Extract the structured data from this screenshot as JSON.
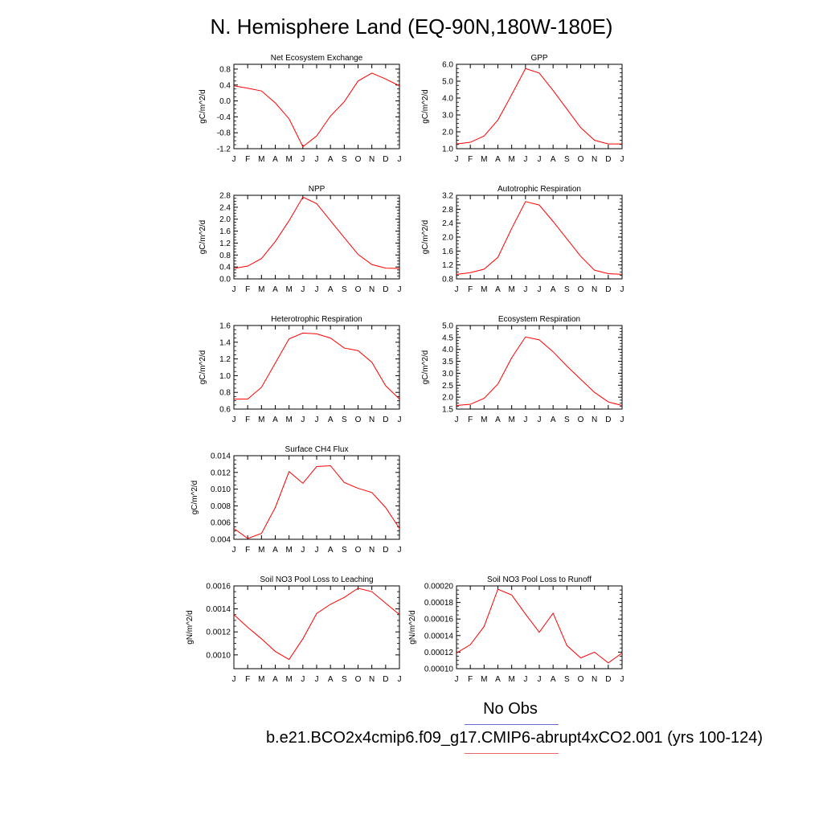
{
  "title": "N. Hemisphere Land (EQ-90N,180W-180E)",
  "legend": {
    "obs_label": "No Obs",
    "obs_color": "#0000ff",
    "case_label": "b.e21.BCO2x4cmip6.f09_g17.CMIP6-abrupt4xCO2.001 (yrs 100-124)",
    "case_color": "#ff0000"
  },
  "chart_data": [
    {
      "type": "line",
      "title": "Net Ecosystem Exchange",
      "ylabel": "gC/m^2/d",
      "categories": [
        "J",
        "F",
        "M",
        "A",
        "M",
        "J",
        "J",
        "A",
        "S",
        "O",
        "N",
        "D",
        "J"
      ],
      "values": [
        0.38,
        0.32,
        0.25,
        -0.05,
        -0.45,
        -1.15,
        -0.88,
        -0.38,
        -0.02,
        0.5,
        0.7,
        0.55,
        0.38
      ],
      "ylim": [
        -1.2,
        0.92
      ],
      "yticks": [
        0.8,
        0.4,
        0.0,
        -0.4,
        -0.8,
        -1.2
      ],
      "ytick_labels": [
        "0.8",
        "0.4",
        "0.0",
        "-0.4",
        "-0.8",
        "-1.2"
      ],
      "color": "#ff0000"
    },
    {
      "type": "line",
      "title": "GPP",
      "ylabel": "gC/m^2/d",
      "categories": [
        "J",
        "F",
        "M",
        "A",
        "M",
        "J",
        "J",
        "A",
        "S",
        "O",
        "N",
        "D",
        "J"
      ],
      "values": [
        1.28,
        1.38,
        1.75,
        2.7,
        4.2,
        5.75,
        5.48,
        4.45,
        3.35,
        2.25,
        1.5,
        1.28,
        1.28
      ],
      "ylim": [
        1.0,
        6.0
      ],
      "yticks": [
        6.0,
        5.0,
        4.0,
        3.0,
        2.0,
        1.0
      ],
      "ytick_labels": [
        "6.0",
        "5.0",
        "4.0",
        "3.0",
        "2.0",
        "1.0"
      ],
      "color": "#ff0000"
    },
    {
      "type": "line",
      "title": "NPP",
      "ylabel": "gC/m^2/d",
      "categories": [
        "J",
        "F",
        "M",
        "A",
        "M",
        "J",
        "J",
        "A",
        "S",
        "O",
        "N",
        "D",
        "J"
      ],
      "values": [
        0.35,
        0.43,
        0.68,
        1.25,
        1.95,
        2.74,
        2.52,
        1.95,
        1.38,
        0.82,
        0.48,
        0.36,
        0.35
      ],
      "ylim": [
        0.0,
        2.8
      ],
      "yticks": [
        2.8,
        2.4,
        2.0,
        1.6,
        1.2,
        0.8,
        0.4,
        0.0
      ],
      "ytick_labels": [
        "2.8",
        "2.4",
        "2.0",
        "1.6",
        "1.2",
        "0.8",
        "0.4",
        "0.0"
      ],
      "color": "#ff0000"
    },
    {
      "type": "line",
      "title": "Autotrophic Respiration",
      "ylabel": "gC/m^2/d",
      "categories": [
        "J",
        "F",
        "M",
        "A",
        "M",
        "J",
        "J",
        "A",
        "S",
        "O",
        "N",
        "D",
        "J"
      ],
      "values": [
        0.93,
        0.98,
        1.08,
        1.42,
        2.25,
        3.02,
        2.92,
        2.45,
        1.95,
        1.45,
        1.05,
        0.95,
        0.93
      ],
      "ylim": [
        0.8,
        3.2
      ],
      "yticks": [
        3.2,
        2.8,
        2.4,
        2.0,
        1.6,
        1.2,
        0.8
      ],
      "ytick_labels": [
        "3.2",
        "2.8",
        "2.4",
        "2.0",
        "1.6",
        "1.2",
        "0.8"
      ],
      "color": "#ff0000"
    },
    {
      "type": "line",
      "title": "Heterotrophic Respiration",
      "ylabel": "gC/m^2/d",
      "categories": [
        "J",
        "F",
        "M",
        "A",
        "M",
        "J",
        "J",
        "A",
        "S",
        "O",
        "N",
        "D",
        "J"
      ],
      "values": [
        0.72,
        0.72,
        0.86,
        1.15,
        1.44,
        1.51,
        1.5,
        1.45,
        1.33,
        1.3,
        1.16,
        0.88,
        0.72
      ],
      "ylim": [
        0.6,
        1.6
      ],
      "yticks": [
        1.6,
        1.4,
        1.2,
        1.0,
        0.8,
        0.6
      ],
      "ytick_labels": [
        "1.6",
        "1.4",
        "1.2",
        "1.0",
        "0.8",
        "0.6"
      ],
      "color": "#ff0000"
    },
    {
      "type": "line",
      "title": "Ecosystem Respiration",
      "ylabel": "gC/m^2/d",
      "categories": [
        "J",
        "F",
        "M",
        "A",
        "M",
        "J",
        "J",
        "A",
        "S",
        "O",
        "N",
        "D",
        "J"
      ],
      "values": [
        1.65,
        1.7,
        1.95,
        2.55,
        3.65,
        4.52,
        4.4,
        3.9,
        3.3,
        2.75,
        2.2,
        1.8,
        1.65
      ],
      "ylim": [
        1.5,
        5.0
      ],
      "yticks": [
        5.0,
        4.5,
        4.0,
        3.5,
        3.0,
        2.5,
        2.0,
        1.5
      ],
      "ytick_labels": [
        "5.0",
        "4.5",
        "4.0",
        "3.5",
        "3.0",
        "2.5",
        "2.0",
        "1.5"
      ],
      "color": "#ff0000"
    },
    {
      "type": "line",
      "title": "Surface CH4 Flux",
      "ylabel": "gC/m^2/d",
      "categories": [
        "J",
        "F",
        "M",
        "A",
        "M",
        "J",
        "J",
        "A",
        "S",
        "O",
        "N",
        "D",
        "J"
      ],
      "values": [
        0.0053,
        0.0041,
        0.0047,
        0.0078,
        0.0121,
        0.0107,
        0.0127,
        0.0128,
        0.0108,
        0.0101,
        0.0096,
        0.0078,
        0.0053
      ],
      "ylim": [
        0.004,
        0.014
      ],
      "yticks": [
        0.014,
        0.012,
        0.01,
        0.008,
        0.006,
        0.004
      ],
      "ytick_labels": [
        "0.014",
        "0.012",
        "0.010",
        "0.008",
        "0.006",
        "0.004"
      ],
      "color": "#ff0000"
    },
    {
      "type": "line",
      "title": "Soil NO3 Pool Loss to Leaching",
      "ylabel": "gN/m^2/d",
      "categories": [
        "J",
        "F",
        "M",
        "A",
        "M",
        "J",
        "J",
        "A",
        "S",
        "O",
        "N",
        "D",
        "J"
      ],
      "values": [
        0.00135,
        0.00124,
        0.00114,
        0.00103,
        0.00096,
        0.00114,
        0.00136,
        0.00144,
        0.0015,
        0.00158,
        0.00155,
        0.00145,
        0.00135
      ],
      "ylim": [
        0.00088,
        0.0016
      ],
      "yticks": [
        0.0016,
        0.0014,
        0.0012,
        0.001
      ],
      "ytick_labels": [
        "0.0016",
        "0.0014",
        "0.0012",
        "0.0010"
      ],
      "color": "#ff0000"
    },
    {
      "type": "line",
      "title": "Soil NO3 Pool Loss to Runoff",
      "ylabel": "gN/m^2/d",
      "categories": [
        "J",
        "F",
        "M",
        "A",
        "M",
        "J",
        "J",
        "A",
        "S",
        "O",
        "N",
        "D",
        "J"
      ],
      "values": [
        0.000119,
        0.000129,
        0.000151,
        0.000196,
        0.000189,
        0.000166,
        0.000144,
        0.000167,
        0.000128,
        0.000113,
        0.00012,
        0.000107,
        0.000119
      ],
      "ylim": [
        0.0001,
        0.0002
      ],
      "yticks": [
        0.0002,
        0.00018,
        0.00016,
        0.00014,
        0.00012,
        0.0001
      ],
      "ytick_labels": [
        "0.00020",
        "0.00018",
        "0.00016",
        "0.00014",
        "0.00012",
        "0.00010"
      ],
      "color": "#ff0000"
    }
  ]
}
